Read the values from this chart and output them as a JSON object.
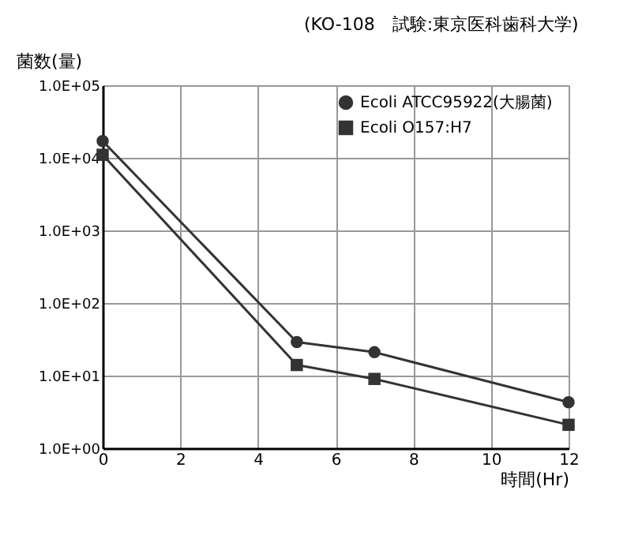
{
  "chart_data": {
    "type": "line",
    "title": "(KO-108　試験:東京医科歯科大学)",
    "ylabel": "菌数(量)",
    "xlabel": "時間(Hr)",
    "log": "y",
    "xlim": [
      0,
      12
    ],
    "xticks": [
      0,
      2,
      4,
      6,
      8,
      10,
      12
    ],
    "ylim": [
      1,
      100000
    ],
    "yticks": [
      {
        "value": 1,
        "label": "1.0E+00"
      },
      {
        "value": 10,
        "label": "1.0E+01"
      },
      {
        "value": 100,
        "label": "1.0E+02"
      },
      {
        "value": 1000,
        "label": "1.0E+03"
      },
      {
        "value": 10000,
        "label": "1.0E+04"
      },
      {
        "value": 100000,
        "label": "1.0E+05"
      }
    ],
    "grid": true,
    "legend": "top right",
    "line_style": "solid",
    "x": [
      0,
      5,
      7,
      12
    ],
    "series": [
      {
        "name": "Ecoli  ATCC95922(大腸菌)",
        "color": "#333333",
        "marker": "circle",
        "values": [
          17000,
          29,
          21,
          4.3
        ]
      },
      {
        "name": "Ecoli  O157:H7",
        "color": "#333333",
        "marker": "square",
        "values": [
          11000,
          14,
          9,
          2.1
        ]
      }
    ]
  }
}
